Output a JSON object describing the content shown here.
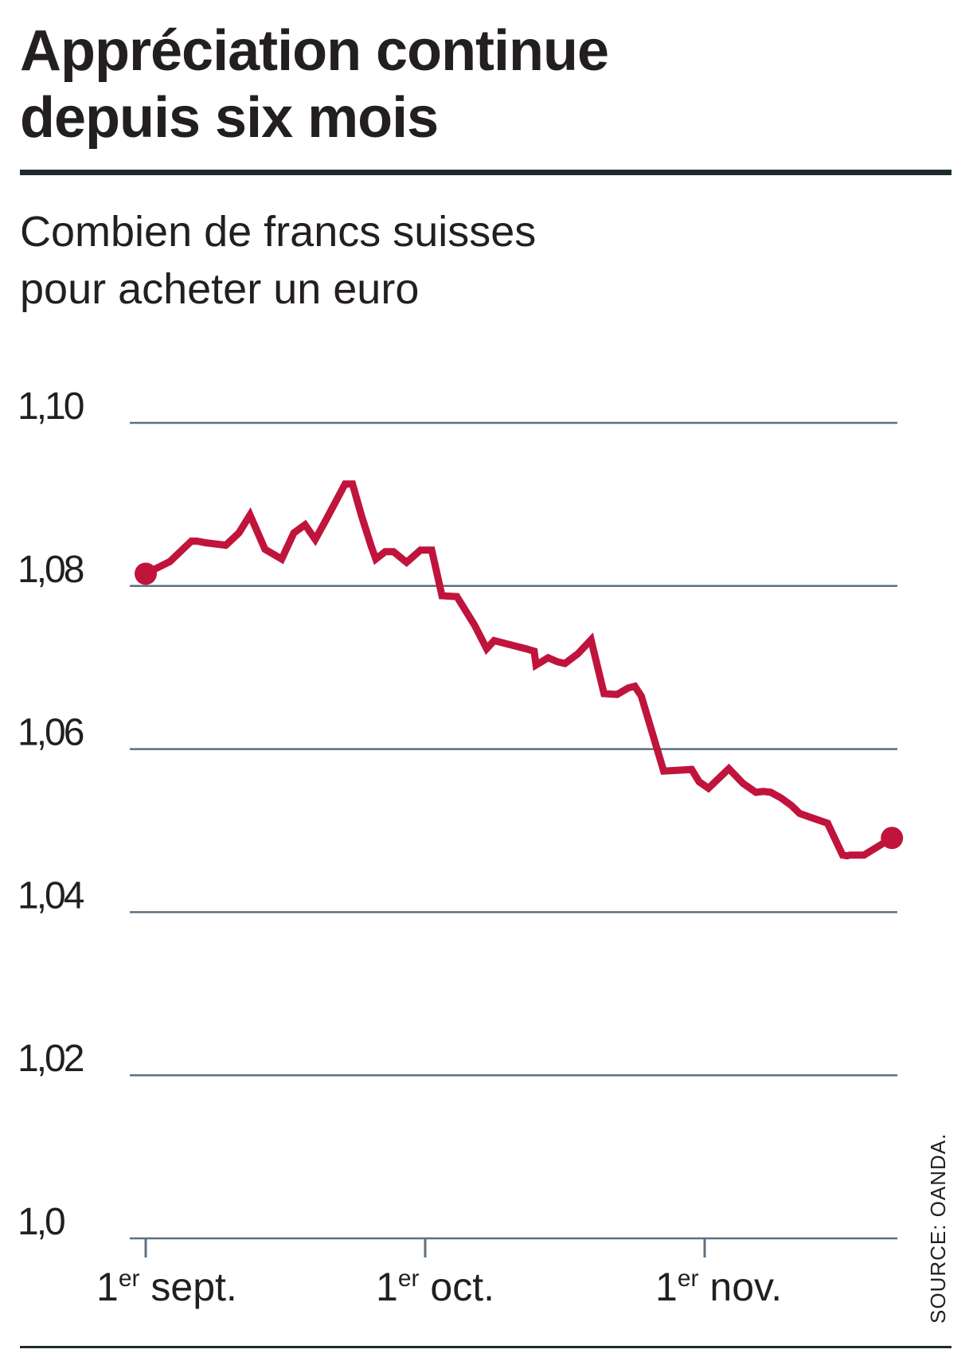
{
  "title_lines": [
    "Appréciation continue",
    "depuis six mois"
  ],
  "subtitle_lines": [
    "Combien de francs suisses",
    "pour acheter un euro"
  ],
  "source": "SOURCE: OANDA.",
  "colors": {
    "line": "#c0143c",
    "grid": "#5d7080",
    "text": "#231f20",
    "rule": "#1f2a30"
  },
  "chart_data": {
    "type": "line",
    "y_ticks": [
      "1,10",
      "1,08",
      "1,06",
      "1,04",
      "1,02",
      "1,0"
    ],
    "y_tick_values": [
      1.1,
      1.08,
      1.06,
      1.04,
      1.02,
      1.0
    ],
    "ylim": [
      1.0,
      1.1
    ],
    "x_ticks": [
      {
        "sup_prefix": "1",
        "sup": "er",
        "label": " sept.",
        "day": 0
      },
      {
        "sup_prefix": "1",
        "sup": "er",
        "label": " oct.",
        "day": 30
      },
      {
        "sup_prefix": "1",
        "sup": "er",
        "label": " nov.",
        "day": 60
      }
    ],
    "xlim": [
      0,
      80
    ],
    "grid": true,
    "endpoint_markers": true,
    "series": [
      {
        "x": [
          0,
          2.6,
          4.9,
          5.5,
          6.4,
          8.6,
          10.0,
          11.2,
          12.8,
          14.6,
          15.9,
          17.1,
          18.2,
          19.3,
          21.4,
          22.2,
          23.2,
          24.2,
          24.7,
          25.7,
          26.6,
          28.0,
          29.5,
          30.7,
          31.8,
          33.4,
          35.3,
          36.6,
          37.4,
          40.8,
          41.7,
          41.9,
          43.2,
          44.2,
          45.0,
          46.4,
          47.8,
          49.2,
          50.6,
          51.8,
          52.5,
          53.2,
          55.6,
          57.1,
          58.6,
          59.4,
          60.4,
          62.6,
          64.1,
          65.5,
          66.3,
          67.1,
          68.2,
          69.3,
          70.2,
          73.2,
          74.8,
          75.3,
          75.6,
          77.1,
          80.1
        ],
        "y": [
          1.0815,
          1.083,
          1.0855,
          1.0855,
          1.0853,
          1.085,
          1.0865,
          1.0887,
          1.0845,
          1.0833,
          1.0865,
          1.0875,
          1.0857,
          1.088,
          1.0925,
          1.0925,
          1.0885,
          1.0849,
          1.0833,
          1.0842,
          1.0842,
          1.0829,
          1.0844,
          1.0844,
          1.0788,
          1.0787,
          1.0752,
          1.0723,
          1.0733,
          1.0723,
          1.072,
          1.0703,
          1.0712,
          1.0707,
          1.0705,
          1.0717,
          1.0734,
          1.0668,
          1.0667,
          1.0675,
          1.0677,
          1.0665,
          1.0573,
          1.0574,
          1.0575,
          1.056,
          1.0552,
          1.0576,
          1.0558,
          1.0547,
          1.0548,
          1.0547,
          1.054,
          1.0531,
          1.0521,
          1.0509,
          1.047,
          1.0469,
          1.047,
          1.047,
          1.0491
        ]
      }
    ]
  }
}
